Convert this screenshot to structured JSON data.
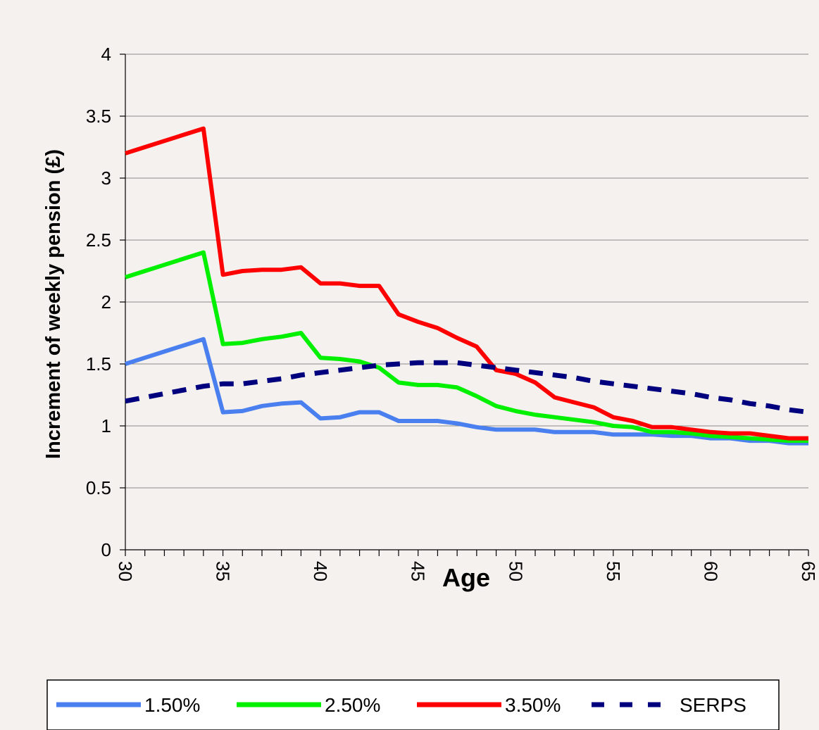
{
  "chart_data": {
    "type": "line",
    "title": "",
    "xlabel": "Age",
    "ylabel": "Increment of weekly pension (£)",
    "xlim": [
      30,
      65
    ],
    "ylim": [
      0,
      4
    ],
    "x_ticks": [
      30,
      35,
      40,
      45,
      50,
      55,
      60,
      65
    ],
    "y_ticks": [
      0,
      0.5,
      1,
      1.5,
      2,
      2.5,
      3,
      3.5,
      4
    ],
    "grid": "horizontal",
    "legend": "bottom",
    "x": [
      30,
      31,
      32,
      33,
      34,
      35,
      36,
      37,
      38,
      39,
      40,
      41,
      42,
      43,
      44,
      45,
      46,
      47,
      48,
      49,
      50,
      51,
      52,
      53,
      54,
      55,
      56,
      57,
      58,
      59,
      60,
      61,
      62,
      63,
      64,
      65
    ],
    "series": [
      {
        "name": "1.50%",
        "color": "#4a7ff0",
        "style": "solid",
        "values": [
          1.5,
          1.55,
          1.6,
          1.65,
          1.7,
          1.11,
          1.12,
          1.16,
          1.18,
          1.19,
          1.06,
          1.07,
          1.11,
          1.11,
          1.04,
          1.04,
          1.04,
          1.02,
          0.99,
          0.97,
          0.97,
          0.97,
          0.95,
          0.95,
          0.95,
          0.93,
          0.93,
          0.93,
          0.92,
          0.92,
          0.9,
          0.9,
          0.88,
          0.88,
          0.86,
          0.86
        ]
      },
      {
        "name": "2.50%",
        "color": "#00f000",
        "style": "solid",
        "values": [
          2.2,
          2.25,
          2.3,
          2.35,
          2.4,
          1.66,
          1.67,
          1.7,
          1.72,
          1.75,
          1.55,
          1.54,
          1.52,
          1.47,
          1.35,
          1.33,
          1.33,
          1.31,
          1.24,
          1.16,
          1.12,
          1.09,
          1.07,
          1.05,
          1.03,
          1.0,
          0.99,
          0.95,
          0.95,
          0.94,
          0.92,
          0.91,
          0.9,
          0.89,
          0.88,
          0.88
        ]
      },
      {
        "name": "3.50%",
        "color": "#ff0000",
        "style": "solid",
        "values": [
          3.2,
          3.25,
          3.3,
          3.35,
          3.4,
          2.22,
          2.25,
          2.26,
          2.26,
          2.28,
          2.15,
          2.15,
          2.13,
          2.13,
          1.9,
          1.84,
          1.79,
          1.71,
          1.64,
          1.45,
          1.42,
          1.35,
          1.23,
          1.19,
          1.15,
          1.07,
          1.04,
          0.99,
          0.99,
          0.97,
          0.95,
          0.94,
          0.94,
          0.92,
          0.9,
          0.9
        ]
      },
      {
        "name": "SERPS",
        "color": "#00007f",
        "style": "dashed",
        "values": [
          1.2,
          1.23,
          1.26,
          1.29,
          1.32,
          1.34,
          1.34,
          1.36,
          1.38,
          1.41,
          1.43,
          1.45,
          1.47,
          1.49,
          1.5,
          1.51,
          1.51,
          1.51,
          1.49,
          1.47,
          1.45,
          1.43,
          1.41,
          1.39,
          1.36,
          1.34,
          1.32,
          1.3,
          1.28,
          1.26,
          1.23,
          1.21,
          1.18,
          1.16,
          1.13,
          1.11
        ]
      }
    ]
  }
}
